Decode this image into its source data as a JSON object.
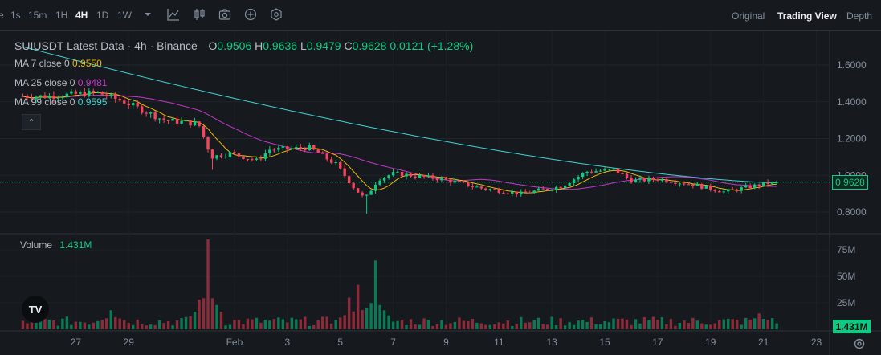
{
  "toolbar": {
    "timeframes": [
      {
        "label": "e",
        "active": false
      },
      {
        "label": "1s",
        "active": false
      },
      {
        "label": "15m",
        "active": false
      },
      {
        "label": "1H",
        "active": false
      },
      {
        "label": "4H",
        "active": true
      },
      {
        "label": "1D",
        "active": false
      },
      {
        "label": "1W",
        "active": false
      }
    ],
    "icons": [
      "dropdown-icon",
      "indicator-icon",
      "chart-type-icon",
      "camera-icon",
      "add-icon",
      "settings-hex-icon"
    ],
    "views": [
      {
        "label": "Original",
        "active": false
      },
      {
        "label": "Trading View",
        "active": true
      },
      {
        "label": "Depth",
        "active": false
      }
    ]
  },
  "legend": {
    "symbol": "SUIUSDT Latest Data · 4h · Binance",
    "o_label": "O",
    "o_value": "0.9506",
    "h_label": "H",
    "h_value": "0.9636",
    "l_label": "L",
    "l_value": "0.9479",
    "c_label": "C",
    "c_value": "0.9628",
    "change": "0.0121 (+1.28%)",
    "ma": [
      {
        "label": "MA 7 close 0",
        "value": "0.9550",
        "color": "#f0b90b"
      },
      {
        "label": "MA 25 close 0",
        "value": "0.9481",
        "color": "#c536c9"
      },
      {
        "label": "MA 99 close 0",
        "value": "0.9595",
        "color": "#3dd3d0"
      }
    ],
    "volume_label": "Volume",
    "volume_value": "1.431M"
  },
  "price_tag": "0.9628",
  "volume_tag": "1.431M",
  "logo_text": "TV",
  "colors": {
    "up": "#0ecb81",
    "down": "#f6465d",
    "ma7": "#f0b90b",
    "ma25": "#c536c9",
    "ma99": "#3dd3d0"
  },
  "chart_data": {
    "type": "candlestick",
    "price_axis": {
      "ticks": [
        "1.6000",
        "1.4000",
        "1.2000",
        "1.0000",
        "0.8000"
      ],
      "range": [
        0.72,
        1.75
      ]
    },
    "volume_axis": {
      "ticks": [
        "75M",
        "50M",
        "25M"
      ],
      "range": [
        0,
        85
      ]
    },
    "x_ticks": [
      "27",
      "29",
      "Feb",
      "3",
      "5",
      "7",
      "9",
      "11",
      "13",
      "15",
      "17",
      "19",
      "21",
      "23"
    ],
    "x_ticks_days": [
      -5,
      -3,
      1,
      3,
      5,
      7,
      9,
      11,
      13,
      15,
      17,
      19,
      21,
      23
    ],
    "last_close": 0.9628,
    "key_points": [
      {
        "day": -6.0,
        "price": 1.43
      },
      {
        "day": -4.0,
        "price": 1.45
      },
      {
        "day": -3.0,
        "price": 1.4
      },
      {
        "day": -1.5,
        "price": 1.3
      },
      {
        "day": -0.2,
        "price": 1.28
      },
      {
        "day": 0.3,
        "price": 1.1
      },
      {
        "day": 1.0,
        "price": 1.12
      },
      {
        "day": 2.0,
        "price": 1.08
      },
      {
        "day": 2.5,
        "price": 1.14
      },
      {
        "day": 4.0,
        "price": 1.15
      },
      {
        "day": 5.0,
        "price": 1.06
      },
      {
        "day": 5.7,
        "price": 0.93
      },
      {
        "day": 6.1,
        "price": 0.87
      },
      {
        "day": 6.6,
        "price": 0.98
      },
      {
        "day": 7.2,
        "price": 1.01
      },
      {
        "day": 9.0,
        "price": 0.98
      },
      {
        "day": 10.5,
        "price": 0.93
      },
      {
        "day": 12.0,
        "price": 0.9
      },
      {
        "day": 13.5,
        "price": 0.94
      },
      {
        "day": 14.5,
        "price": 1.02
      },
      {
        "day": 15.5,
        "price": 1.03
      },
      {
        "day": 16.2,
        "price": 0.97
      },
      {
        "day": 17.2,
        "price": 0.98
      },
      {
        "day": 18.5,
        "price": 0.95
      },
      {
        "day": 19.7,
        "price": 0.91
      },
      {
        "day": 21.5,
        "price": 0.9628
      }
    ],
    "volume_spikes": [
      {
        "day": 0.0,
        "value": 85
      },
      {
        "day": -3.6,
        "value": 18
      },
      {
        "day": -0.4,
        "value": 28
      },
      {
        "day": 5.7,
        "value": 42
      },
      {
        "day": 6.3,
        "value": 65
      },
      {
        "day": 5.4,
        "value": 30
      },
      {
        "day": 20.8,
        "value": 15
      }
    ]
  }
}
